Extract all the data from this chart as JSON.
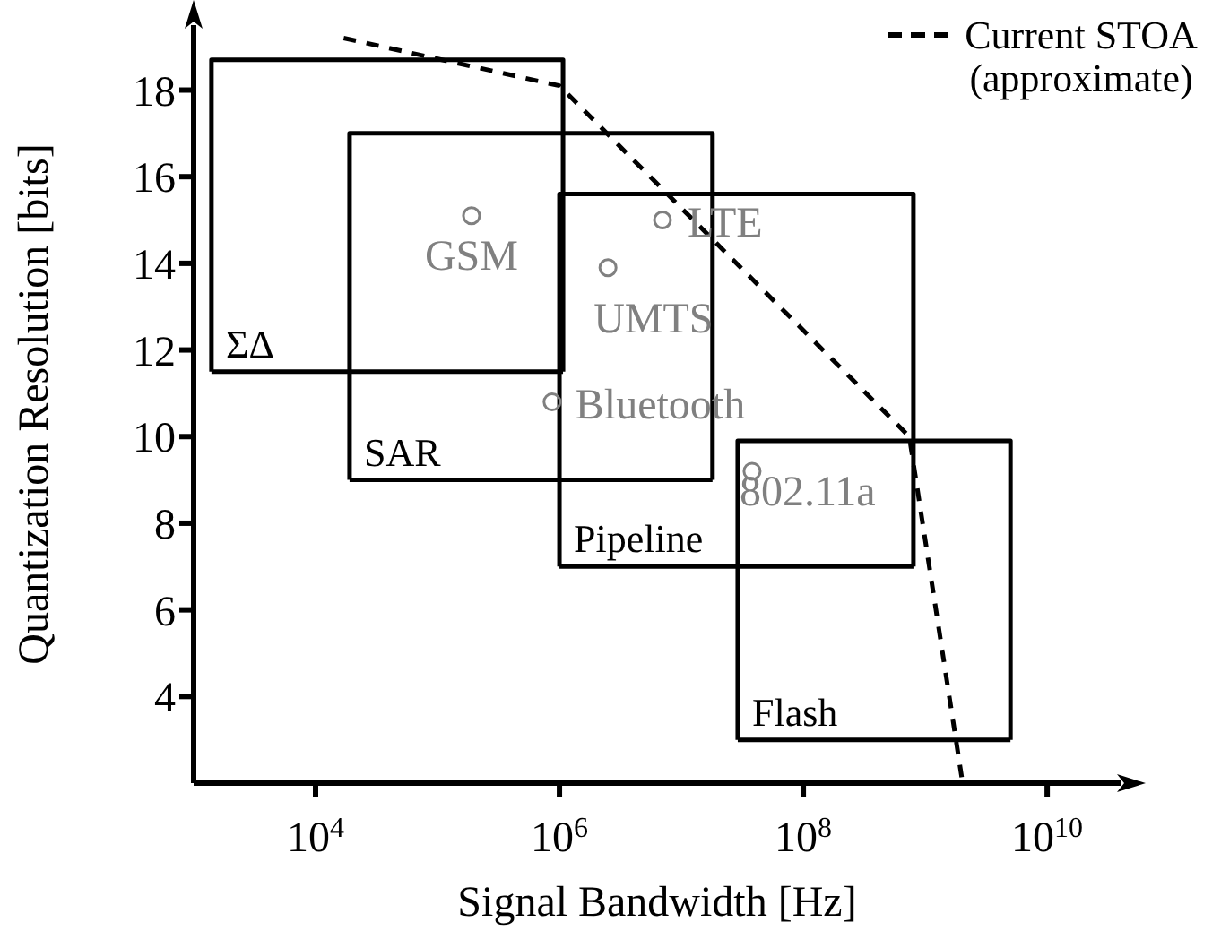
{
  "chart_data": {
    "type": "line",
    "xlabel": "Signal Bandwidth [Hz]",
    "ylabel": "Quantization Resolution [bits]",
    "log": "x",
    "grid": false,
    "legend": "top right",
    "xlim": [
      1000,
      40000000000
    ],
    "xticks": [
      {
        "value": 10000,
        "label": "10$^{4}$"
      },
      {
        "value": 1000000,
        "label": "10$^{6}$"
      },
      {
        "value": 100000000,
        "label": "10$^{8}$"
      },
      {
        "value": 10000000000,
        "label": "10$^{10}$"
      }
    ],
    "ylim": [
      2,
      19.5
    ],
    "yticks": [
      4,
      6,
      8,
      10,
      12,
      14,
      16,
      18
    ],
    "series": [
      {
        "name": "Current STOA (approximate)",
        "type": "line",
        "color": "#000000",
        "line_style": "dashed",
        "marker": "none",
        "x": [
          17000,
          1000000,
          740000000,
          2000000000
        ],
        "values": [
          19.2,
          18.1,
          10,
          2.1
        ]
      },
      {
        "name": "ΣΔ",
        "type": "line",
        "color": "#000000",
        "line_style": "solid",
        "marker": "none",
        "x": [
          1400,
          1400,
          1070000,
          1070000
        ],
        "values": [
          11.5,
          18.7,
          18.7,
          11.5
        ]
      },
      {
        "name": "SAR",
        "type": "line",
        "color": "#000000",
        "line_style": "solid",
        "marker": "none",
        "x": [
          19000,
          19000,
          18000000,
          18000000
        ],
        "values": [
          9,
          17,
          17,
          9
        ]
      },
      {
        "name": "Pipeline",
        "type": "line",
        "color": "#000000",
        "line_style": "solid",
        "marker": "none",
        "x": [
          1000000,
          1000000,
          800000000,
          800000000
        ],
        "values": [
          7,
          15.6,
          15.6,
          7
        ]
      },
      {
        "name": "Flash",
        "type": "line",
        "color": "#000000",
        "line_style": "solid",
        "marker": "none",
        "x": [
          29000000,
          29000000,
          5000000000,
          5000000000
        ],
        "values": [
          3,
          9.9,
          9.9,
          3
        ]
      },
      {
        "name": "GSM",
        "type": "scatter",
        "color": "#808080",
        "marker": "circle",
        "x": [
          190000
        ],
        "values": [
          15.1
        ]
      },
      {
        "name": "LTE",
        "type": "scatter",
        "color": "#808080",
        "marker": "circle",
        "x": [
          7000000
        ],
        "values": [
          15
        ]
      },
      {
        "name": "UMTS",
        "type": "scatter",
        "color": "#808080",
        "marker": "circle",
        "x": [
          2500000
        ],
        "values": [
          13.9
        ]
      },
      {
        "name": "Bluetooth",
        "type": "scatter",
        "color": "#808080",
        "marker": "circle",
        "x": [
          870000
        ],
        "values": [
          10.8
        ]
      },
      {
        "name": "802.11a",
        "type": "scatter",
        "color": "#808080",
        "marker": "circle",
        "x": [
          38000000
        ],
        "values": [
          9.2
        ]
      }
    ]
  }
}
